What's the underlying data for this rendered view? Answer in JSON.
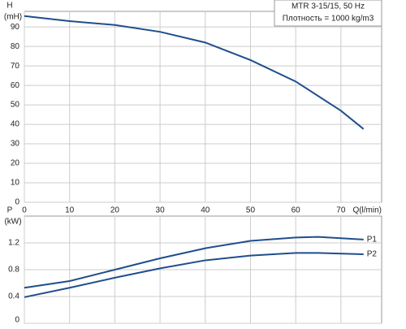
{
  "chart_data": [
    {
      "type": "line",
      "title": "MTR 3-15/15, 50 Hz",
      "annotation": "Плотность = 1000 kg/m3",
      "y_label": "H",
      "y_unit": "(mH)",
      "x_label": "Q(l/min)",
      "x": [
        0,
        10,
        20,
        30,
        40,
        50,
        60,
        70,
        75
      ],
      "series": [
        {
          "color": "#1f4e8c",
          "values": [
            95.6,
            93,
            91,
            87.5,
            82,
            73,
            62,
            47,
            37.6
          ]
        }
      ],
      "xlim": [
        0,
        79
      ],
      "xticks": [
        0,
        10,
        20,
        30,
        40,
        50,
        60,
        70
      ],
      "ylim": [
        0,
        98
      ],
      "yticks": [
        0,
        10,
        20,
        30,
        40,
        50,
        60,
        70,
        80,
        90
      ],
      "grid": true
    },
    {
      "type": "line",
      "y_label": "P",
      "y_unit": "(kW)",
      "x": [
        0,
        10,
        20,
        30,
        40,
        50,
        60,
        65,
        75
      ],
      "series": [
        {
          "name": "P1",
          "color": "#1f4e8c",
          "values": [
            0.53,
            0.63,
            0.8,
            0.97,
            1.12,
            1.23,
            1.28,
            1.29,
            1.25
          ]
        },
        {
          "name": "P2",
          "color": "#1f4e8c",
          "values": [
            0.39,
            0.53,
            0.68,
            0.82,
            0.94,
            1.01,
            1.05,
            1.05,
            1.03
          ]
        }
      ],
      "xlim": [
        0,
        79
      ],
      "xticks": [
        0,
        10,
        20,
        30,
        40,
        50,
        60,
        70
      ],
      "ylim": [
        0,
        1.6
      ],
      "yticks": [
        0,
        0.4,
        0.8,
        1.2
      ],
      "grid": true
    }
  ]
}
